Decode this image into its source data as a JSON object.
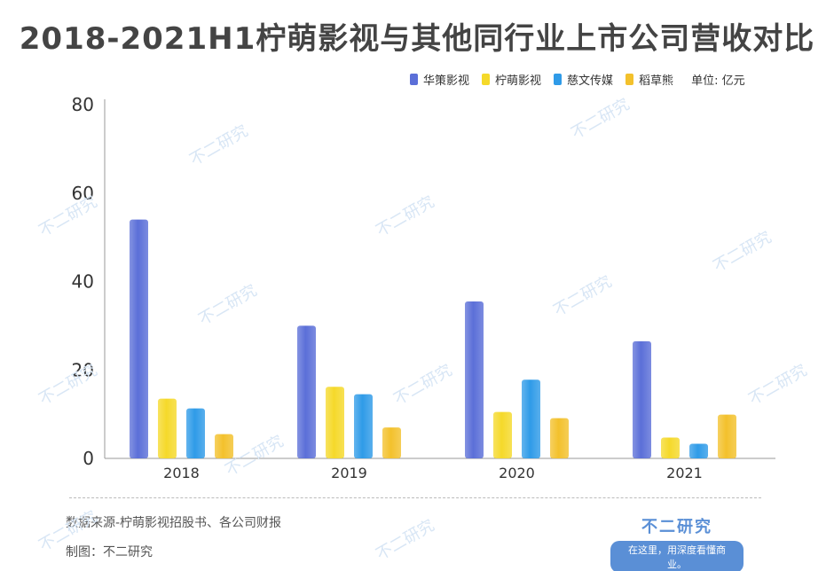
{
  "title": "2018-2021H1柠萌影视与其他同行业上市公司营收对比",
  "unit_label": "单位: 亿元",
  "colors": {
    "华策影视": "#5b6fd8",
    "柠萌影视": "#f5d92a",
    "慈文传媒": "#2f9be8",
    "稻草熊": "#f3c12c"
  },
  "chart_data": {
    "type": "bar",
    "categories": [
      "2018",
      "2019",
      "2020",
      "2021"
    ],
    "series": [
      {
        "name": "华策影视",
        "values": [
          54,
          30,
          35.5,
          26.5
        ]
      },
      {
        "name": "柠萌影视",
        "values": [
          13.5,
          16.2,
          10.5,
          4.7
        ]
      },
      {
        "name": "慈文传媒",
        "values": [
          11.3,
          14.5,
          17.8,
          3.3
        ]
      },
      {
        "name": "稻草熊",
        "values": [
          5.5,
          7,
          9.1,
          9.9
        ]
      }
    ],
    "ylim": [
      0,
      80
    ],
    "yticks": [
      0,
      20,
      40,
      60,
      80
    ],
    "legend": "top-right",
    "grid": false
  },
  "footer": {
    "source": "数据来源-柠萌影视招股书、各公司财报",
    "maker": "制图：不二研究"
  },
  "brand": {
    "name": "不二研究",
    "slogan": "在这里，用深度看懂商业。"
  },
  "watermark": "不二研究"
}
